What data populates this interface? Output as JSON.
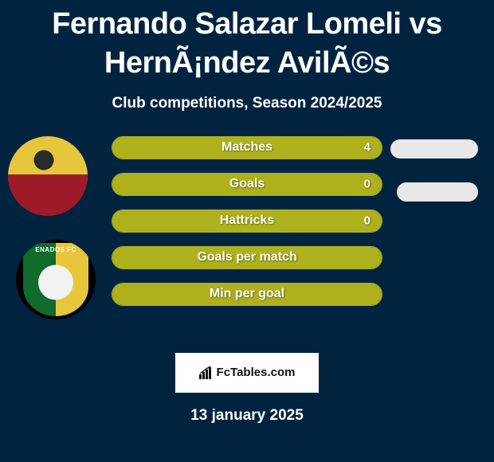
{
  "title": "Fernando Salazar Lomeli vs HernÃ¡ndez AvilÃ©s",
  "subtitle": "Club competitions, Season 2024/2025",
  "date": "13 january 2025",
  "brand": "FcTables.com",
  "colors": {
    "background": "#002440",
    "bar_fill": "#aeb11c",
    "bar_border": "#aeb11c",
    "pill": "#e8e8e8",
    "panel": "#ffffff",
    "club_green": "#106b2c",
    "club_yellow": "#e6c63b",
    "jersey_yellow": "#e6c63b",
    "jersey_red": "#9d1b28"
  },
  "club_badge_text": "ENADOS FC",
  "stats": [
    {
      "label": "Matches",
      "value": "4",
      "filled": true
    },
    {
      "label": "Goals",
      "value": "0",
      "filled": true
    },
    {
      "label": "Hattricks",
      "value": "0",
      "filled": true
    },
    {
      "label": "Goals per match",
      "value": "",
      "filled": true
    },
    {
      "label": "Min per goal",
      "value": "",
      "filled": true
    }
  ],
  "right_pills_count": 2
}
